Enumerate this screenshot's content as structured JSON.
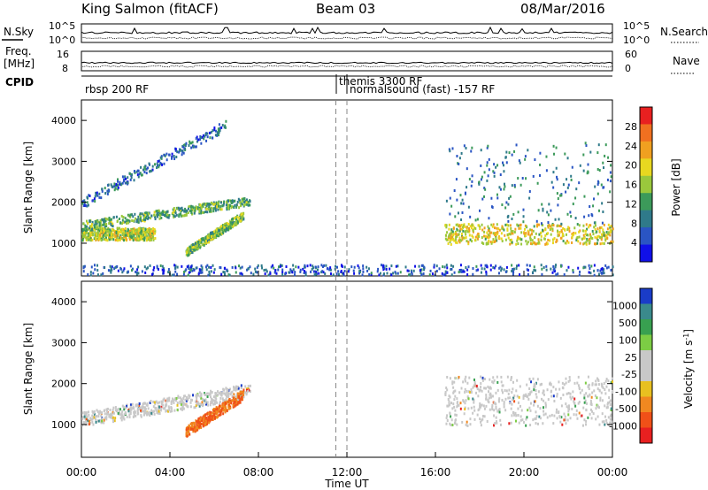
{
  "header": {
    "title": "King Salmon (fitACF)",
    "beam": "Beam 03",
    "date": "08/Mar/2016"
  },
  "noise_panel": {
    "left_label": "N.Sky",
    "left_ticks": [
      "10^5",
      "10^0"
    ],
    "right_ticks": [
      "10^5",
      "10^0"
    ],
    "right_label": "N.Search"
  },
  "freq_panel": {
    "left_label_1": "Freq.",
    "left_label_2": "[MHz]",
    "left_ticks": [
      "16",
      "8"
    ],
    "right_ticks": [
      "60",
      "0"
    ],
    "right_label": "Nave"
  },
  "cpid": {
    "label": "CPID",
    "modes": [
      {
        "name": "rbsp 200 RF",
        "start_hour": 0,
        "end_hour": 11.5
      },
      {
        "name": "themis 3300 RF",
        "start_hour": 11.5,
        "end_hour": 12.0
      },
      {
        "name": "normalsound (fast) -157 RF",
        "start_hour": 12.0,
        "end_hour": 24
      }
    ]
  },
  "chart_data": [
    {
      "type": "heatmap",
      "title": "",
      "ylabel": "Slant Range [km]",
      "xlabel": "",
      "ylim": [
        200,
        4500
      ],
      "xlim_hours": [
        0,
        24
      ],
      "yticks": [
        "1000",
        "2000",
        "3000",
        "4000"
      ],
      "colorbar": {
        "label": "Power [dB]",
        "ticks": [
          "4",
          "8",
          "12",
          "16",
          "20",
          "24",
          "28"
        ],
        "range": [
          0,
          30
        ],
        "colors": [
          "#1010e8",
          "#2a55c4",
          "#2f7a8a",
          "#3c9a5a",
          "#9ac83c",
          "#e8d820",
          "#f0a020",
          "#f07020",
          "#e82020"
        ]
      },
      "features": [
        {
          "t_start": 0.0,
          "t_end": 3.3,
          "range_start": 1100,
          "range_end": 1400,
          "level": 0.55
        },
        {
          "t_start": 0.0,
          "t_end": 7.6,
          "range_start": 1400,
          "range_end": 2200,
          "level": 0.4
        },
        {
          "t_start": 4.7,
          "t_end": 7.3,
          "range_start": 700,
          "range_end": 1700,
          "level": 0.45
        },
        {
          "t_start": 0.0,
          "t_end": 6.5,
          "range_start": 2000,
          "range_end": 4100,
          "level": 0.2
        },
        {
          "t_start": 16.4,
          "t_end": 24.0,
          "range_start": 1000,
          "range_end": 1500,
          "level": 0.6
        },
        {
          "t_start": 16.4,
          "t_end": 24.0,
          "range_start": 1500,
          "range_end": 3500,
          "level": 0.25
        },
        {
          "t_start": 0.0,
          "t_end": 24.0,
          "range_start": 250,
          "range_end": 500,
          "level": 0.15
        }
      ]
    },
    {
      "type": "heatmap",
      "title": "",
      "ylabel": "Slant Range [km]",
      "xlabel": "Time UT",
      "ylim": [
        200,
        4500
      ],
      "xlim_hours": [
        0,
        24
      ],
      "xticks": [
        "00:00",
        "04:00",
        "08:00",
        "12:00",
        "16:00",
        "20:00",
        "00:00"
      ],
      "yticks": [
        "1000",
        "2000",
        "3000",
        "4000"
      ],
      "colorbar": {
        "label": "Velocity [m s^-1]",
        "ticks": [
          "1000",
          "500",
          "100",
          "25",
          "-25",
          "-100",
          "-500",
          "-1000"
        ],
        "range": [
          -1000,
          1000
        ],
        "colors": [
          "#1a3cc8",
          "#3a8a8c",
          "#38a050",
          "#7ccc44",
          "#c8c8c8",
          "#c8c8c8",
          "#e8c020",
          "#f08820",
          "#f05018",
          "#e82020"
        ]
      },
      "features": [
        {
          "t_start": 0.0,
          "t_end": 7.6,
          "range_start": 1100,
          "range_end": 2200,
          "level": 0.5
        },
        {
          "t_start": 4.7,
          "t_end": 7.3,
          "range_start": 800,
          "range_end": 1800,
          "level": 0.78
        },
        {
          "t_start": 16.4,
          "t_end": 24.0,
          "range_start": 1000,
          "range_end": 2200,
          "level": 0.5
        }
      ]
    }
  ]
}
